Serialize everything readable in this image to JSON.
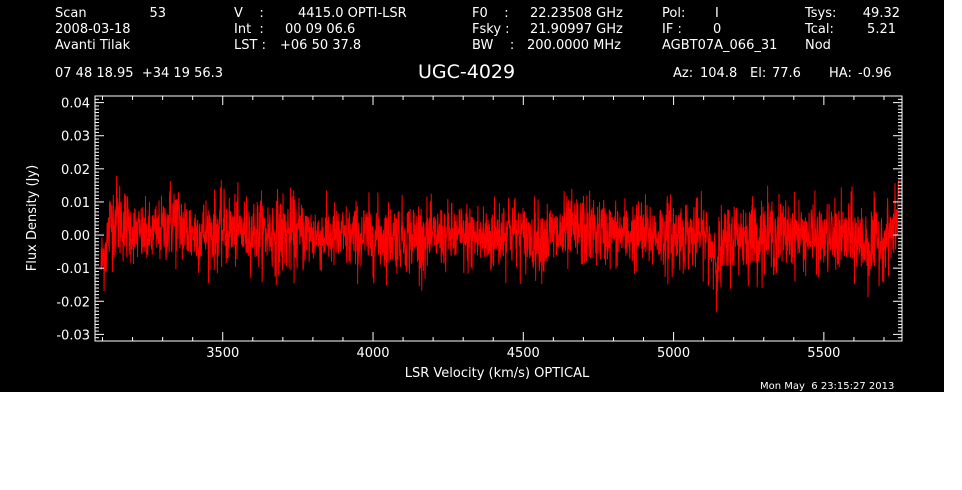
{
  "header": {
    "scan_label": "Scan",
    "scan_value": "53",
    "date": "2008-03-18",
    "observer": "Avanti Tilak",
    "v_label": "V    :",
    "v_value": "4415.0 OPTI-LSR",
    "int_label": "Int  :",
    "int_value": "00 09 06.6",
    "lst_label": "LST :",
    "lst_value": "+06 50 37.8",
    "f0_label": "F0    :",
    "f0_value": "22.23508 GHz",
    "fsky_label": "Fsky :",
    "fsky_value": "21.90997 GHz",
    "bw_label": "BW    :",
    "bw_value": "200.0000 MHz",
    "pol_label": "Pol:",
    "pol_value": "I",
    "if_label": "IF :",
    "if_value": "0",
    "project": "AGBT07A_066_31",
    "tsys_label": "Tsys:",
    "tsys_value": "49.32",
    "tcal_label": "Tcal:",
    "tcal_value": "5.21",
    "proc": "Nod",
    "coords": "07 48 18.95  +34 19 56.3",
    "object": "UGC-4029",
    "az_label": "Az:",
    "az_value": "104.8",
    "el_label": "El:",
    "el_value": "77.6",
    "ha_label": "HA:",
    "ha_value": "-0.96"
  },
  "timestamp": "Mon May  6 23:15:27 2013",
  "colors": {
    "background": "#000000",
    "axes": "#ffffff",
    "trace": "#ff0000",
    "outside": "#ffffff"
  },
  "chart_data": {
    "type": "line",
    "xlabel": "LSR Velocity (km/s) OPTICAL",
    "ylabel": "Flux Density (Jy)",
    "xlim": [
      3075,
      5760
    ],
    "ylim": [
      -0.032,
      0.042
    ],
    "x_ticks": [
      3500,
      4000,
      4500,
      5000,
      5500
    ],
    "x_tick_labels": [
      "3500",
      "4000",
      "4500",
      "5000",
      "5500"
    ],
    "y_ticks": [
      -0.03,
      -0.02,
      -0.01,
      0.0,
      0.01,
      0.02,
      0.03,
      0.04
    ],
    "y_tick_labels": [
      "-0.03",
      "-0.02",
      "-0.01",
      "0.00",
      "0.01",
      "0.02",
      "0.03",
      "0.04"
    ],
    "grid": false,
    "series": [
      {
        "color": "#ff0000",
        "description_points": "approximate noise envelope: velocity, max flux, min flux",
        "x": [
          3095,
          3110,
          3130,
          3160,
          3200,
          3250,
          3300,
          3330,
          3400,
          3500,
          3600,
          3700,
          3800,
          3900,
          4000,
          4100,
          4150,
          4200,
          4300,
          4400,
          4450,
          4500,
          4600,
          4700,
          4800,
          4900,
          5000,
          5100,
          5150,
          5200,
          5300,
          5400,
          5500,
          5600,
          5650,
          5700,
          5720,
          5740,
          5750
        ],
        "max": [
          0.005,
          0.012,
          0.022,
          0.023,
          0.014,
          0.013,
          0.015,
          0.023,
          0.016,
          0.017,
          0.015,
          0.018,
          0.014,
          0.013,
          0.015,
          0.014,
          0.016,
          0.012,
          0.014,
          0.015,
          0.019,
          0.013,
          0.015,
          0.017,
          0.014,
          0.015,
          0.016,
          0.014,
          0.012,
          0.015,
          0.016,
          0.015,
          0.013,
          0.016,
          0.014,
          0.013,
          0.014,
          0.016,
          0.032
        ],
        "min": [
          -0.023,
          -0.02,
          -0.012,
          -0.013,
          -0.012,
          -0.014,
          -0.012,
          -0.013,
          -0.015,
          -0.014,
          -0.013,
          -0.017,
          -0.014,
          -0.015,
          -0.016,
          -0.014,
          -0.018,
          -0.013,
          -0.015,
          -0.017,
          -0.014,
          -0.015,
          -0.016,
          -0.014,
          -0.013,
          -0.015,
          -0.016,
          -0.014,
          -0.025,
          -0.015,
          -0.016,
          -0.014,
          -0.015,
          -0.017,
          -0.021,
          -0.015,
          -0.013,
          -0.012,
          -0.004
        ]
      }
    ]
  }
}
